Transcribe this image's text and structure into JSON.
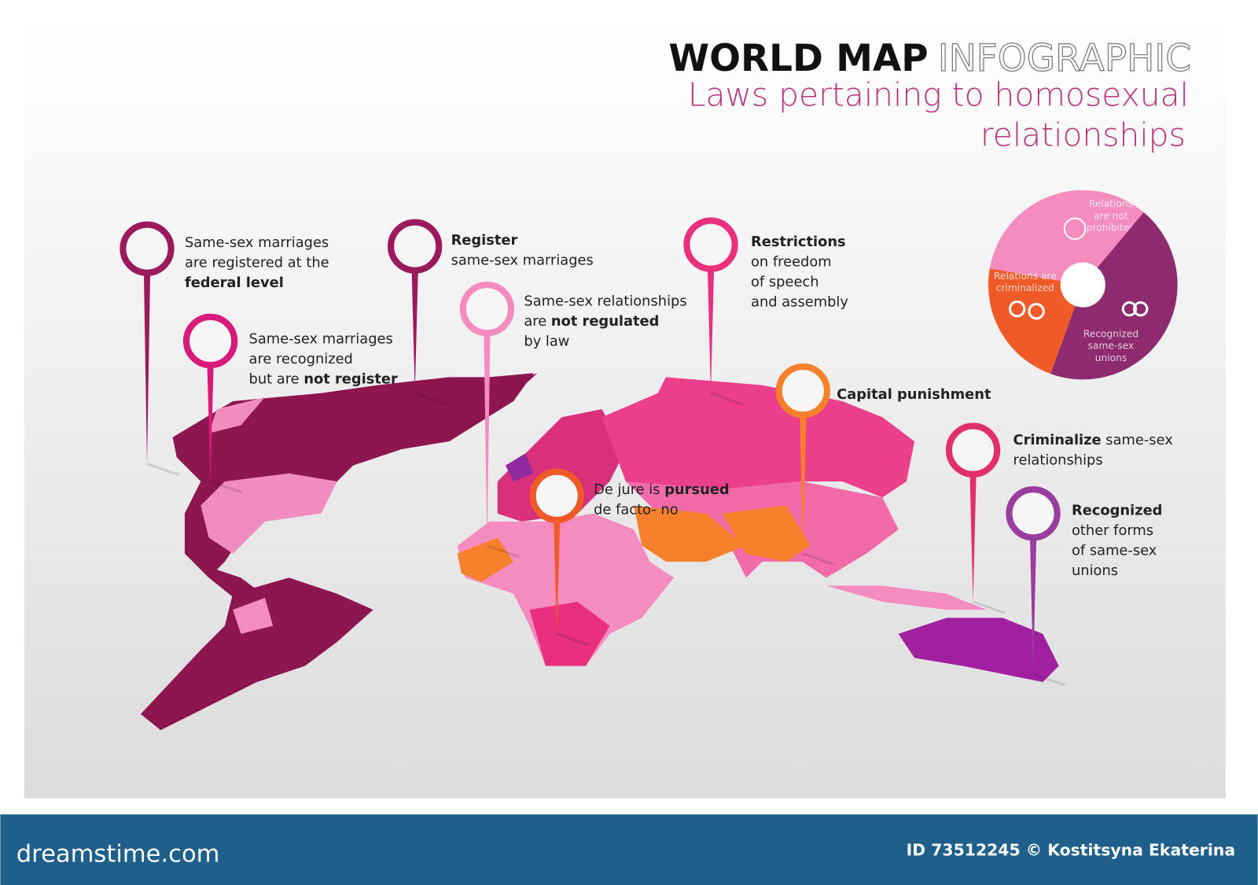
{
  "header": {
    "title_bold": "WORLD MAP",
    "title_light": "INFOGRAPHIC",
    "subtitle_lines": [
      "Laws pertaining to homosexual",
      "relationships"
    ]
  },
  "pins": [
    {
      "color": "#9b1a5e",
      "lines": [
        [
          {
            "text": "Same-sex marriages"
          }
        ],
        [
          {
            "text": "are registered at the"
          }
        ],
        [
          {
            "text": "federal level",
            "bold": true
          }
        ]
      ]
    },
    {
      "color": "#d81b7a",
      "lines": [
        [
          {
            "text": "Same-sex marriages"
          }
        ],
        [
          {
            "text": "are recognized"
          }
        ],
        [
          {
            "text": "but are "
          },
          {
            "text": "not register",
            "bold": true
          }
        ]
      ]
    },
    {
      "color": "#9b1a5e",
      "lines": [
        [
          {
            "text": "Register",
            "bold": true
          }
        ],
        [
          {
            "text": "same-sex marriages"
          }
        ]
      ]
    },
    {
      "color": "#f48cc0",
      "lines": [
        [
          {
            "text": "Same-sex relationships"
          }
        ],
        [
          {
            "text": "are "
          },
          {
            "text": "not regulated",
            "bold": true
          }
        ],
        [
          {
            "text": "by law"
          }
        ]
      ]
    },
    {
      "color": "#e8307f",
      "lines": [
        [
          {
            "text": "Restrictions",
            "bold": true
          }
        ],
        [
          {
            "text": "on freedom"
          }
        ],
        [
          {
            "text": "of speech"
          }
        ],
        [
          {
            "text": "and assembly"
          }
        ]
      ]
    },
    {
      "color": "#f7802a",
      "lines": [
        [
          {
            "text": "Capital punishment",
            "bold": true
          }
        ]
      ]
    },
    {
      "color": "#f05a28",
      "lines": [
        [
          {
            "text": "De jure is "
          },
          {
            "text": "pursued",
            "bold": true
          }
        ],
        [
          {
            "text": "de facto- no"
          }
        ]
      ]
    },
    {
      "color": "#e0306a",
      "lines": [
        [
          {
            "text": "Criminalize",
            "bold": true
          },
          {
            "text": " same-sex"
          }
        ],
        [
          {
            "text": "relationships"
          }
        ]
      ]
    },
    {
      "color": "#9b3d9e",
      "lines": [
        [
          {
            "text": "Recognized",
            "bold": true
          }
        ],
        [
          {
            "text": "other forms"
          }
        ],
        [
          {
            "text": "of same-sex"
          }
        ],
        [
          {
            "text": "unions"
          }
        ]
      ]
    }
  ],
  "legend_circle": {
    "segments": [
      {
        "color": "#f48cc0",
        "label_lines": [
          "Relations",
          "are not",
          "prohibited"
        ]
      },
      {
        "color": "#8e2a6e",
        "label_lines": [
          "Recognized",
          "same-sex",
          "unions"
        ]
      },
      {
        "color": "#f05a28",
        "label_lines": [
          "Relations are",
          "criminalized"
        ]
      }
    ]
  },
  "footer": {
    "site": "dreamstime.com",
    "credit": "ID 73512245 © Kostitsyna Ekaterina"
  }
}
